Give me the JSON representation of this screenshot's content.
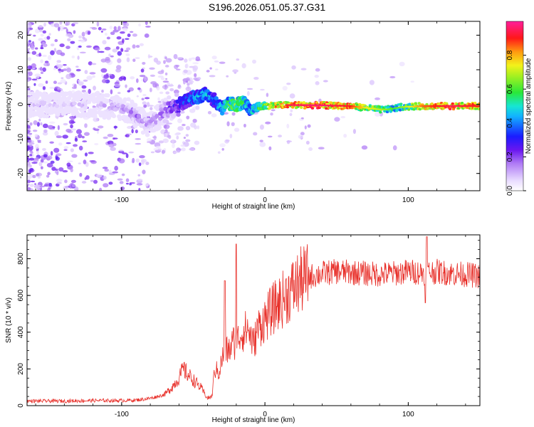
{
  "title": "S196.2026.051.05.37.G31",
  "colors": {
    "snr_line": "#e8302a",
    "axis": "#000000",
    "background": "#ffffff"
  },
  "chart_data": [
    {
      "type": "heatmap",
      "title": "S196.2026.051.05.37.G31",
      "xlabel": "Height of straight line (km)",
      "ylabel": "Frequency (Hz)",
      "xlim": [
        -166,
        150
      ],
      "ylim": [
        -25,
        24
      ],
      "x_ticks": [
        -100,
        0,
        100
      ],
      "x_tick_labels": [
        "-100",
        "0",
        "100"
      ],
      "y_ticks": [
        -20,
        -10,
        0,
        10,
        20
      ],
      "y_tick_labels": [
        "-20",
        "-10",
        "0",
        "10",
        "20"
      ],
      "colorbar": {
        "label": "Normalized spectral amplitude",
        "range": [
          0,
          1
        ],
        "ticks": [
          0.0,
          0.2,
          0.4,
          0.6,
          0.8
        ],
        "tick_labels": [
          "0.0",
          "0.2",
          "0.4",
          "0.6",
          "0.8"
        ],
        "colormap": "rainbow (white-violet-blue-cyan-green-yellow-orange-red-magenta)"
      },
      "ridge": {
        "description": "Dominant frequency track vs height",
        "x": [
          -166,
          -140,
          -120,
          -100,
          -90,
          -82,
          -75,
          -68,
          -60,
          -50,
          -45,
          -40,
          -35,
          -30,
          -25,
          -20,
          -15,
          -10,
          -7,
          -2,
          5,
          20,
          40,
          60,
          70,
          80,
          85,
          90,
          95,
          110,
          130,
          150
        ],
        "freq": [
          0,
          0,
          0,
          -1,
          -3,
          -6,
          -4,
          -1,
          0,
          2,
          2.5,
          3,
          1,
          -1,
          0,
          0,
          0.5,
          -2,
          -1,
          -0.5,
          -0.3,
          -0.2,
          -0.3,
          -0.5,
          -1,
          -1.5,
          -1.5,
          -1.2,
          -0.8,
          -0.5,
          -0.5,
          -0.5
        ],
        "amplitude": [
          0.1,
          0.1,
          0.12,
          0.15,
          0.2,
          0.15,
          0.2,
          0.25,
          0.35,
          0.45,
          0.5,
          0.5,
          0.4,
          0.55,
          0.6,
          0.7,
          0.6,
          0.5,
          0.55,
          0.65,
          0.8,
          0.9,
          0.92,
          0.85,
          0.7,
          0.65,
          0.6,
          0.55,
          0.6,
          0.8,
          0.9,
          0.85
        ]
      }
    },
    {
      "type": "line",
      "xlabel": "Height of straight line (km)",
      "ylabel": "SNR (10 * v/v)",
      "xlim": [
        -166,
        150
      ],
      "ylim": [
        0,
        930
      ],
      "x_ticks": [
        -100,
        0,
        100
      ],
      "x_tick_labels": [
        "-100",
        "0",
        "100"
      ],
      "y_ticks": [
        0,
        200,
        400,
        600,
        800
      ],
      "y_tick_labels": [
        "0",
        "200",
        "400",
        "600",
        "800"
      ],
      "series": [
        {
          "name": "SNR",
          "x": [
            -166,
            -140,
            -120,
            -100,
            -90,
            -80,
            -70,
            -65,
            -60,
            -57,
            -55,
            -50,
            -45,
            -40,
            -37,
            -35,
            -32,
            -30,
            -28,
            -25,
            -22,
            -20,
            -18,
            -15,
            -12,
            -10,
            -8,
            -5,
            -2,
            0,
            3,
            6,
            10,
            15,
            20,
            25,
            30,
            40,
            50,
            60,
            70,
            80,
            90,
            100,
            110,
            120,
            130,
            140,
            150
          ],
          "y": [
            25,
            25,
            28,
            28,
            30,
            40,
            60,
            100,
            150,
            200,
            180,
            140,
            100,
            40,
            50,
            200,
            180,
            250,
            300,
            300,
            350,
            330,
            380,
            400,
            420,
            380,
            330,
            420,
            450,
            470,
            500,
            530,
            560,
            600,
            640,
            680,
            700,
            720,
            730,
            725,
            720,
            715,
            720,
            730,
            725,
            730,
            720,
            715,
            705
          ]
        }
      ],
      "spikes": [
        {
          "x": -28,
          "y": 680
        },
        {
          "x": -20,
          "y": 880
        },
        {
          "x": 113,
          "y": 920
        },
        {
          "x": 112,
          "y": 560
        }
      ]
    }
  ]
}
